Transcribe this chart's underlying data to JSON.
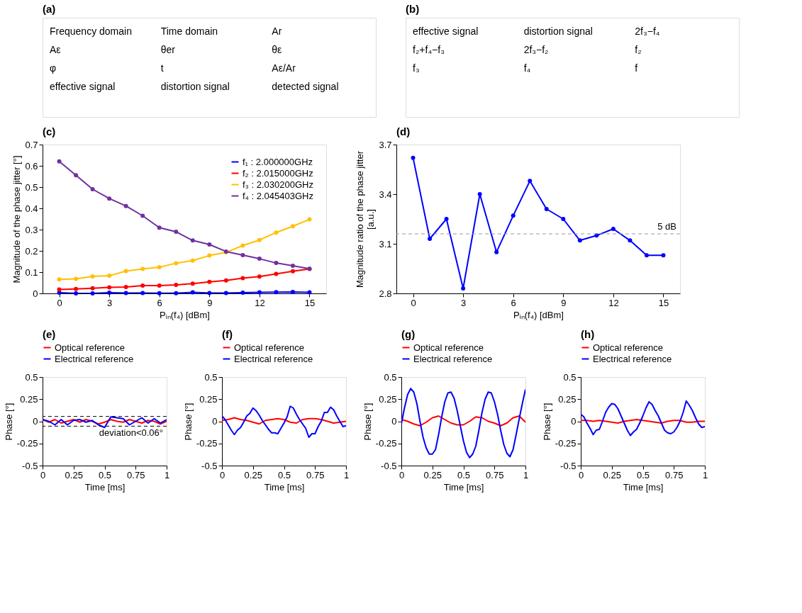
{
  "chart_data": [
    {
      "type": "other",
      "title": "(a)",
      "annotations": [
        "Frequency domain",
        "Time domain",
        "Ar",
        "Aε",
        "θer",
        "θε",
        "φ",
        "t",
        "Aε/Ar",
        "effective signal",
        "distortion signal",
        "detected signal"
      ]
    },
    {
      "type": "other",
      "title": "(b)",
      "annotations": [
        "effective signal",
        "distortion signal",
        "2f₃−f₄",
        "f₂+f₄−f₃",
        "2f₃−f₂",
        "f₂",
        "f₃",
        "f₄",
        "f"
      ]
    },
    {
      "type": "line",
      "title": "(c)",
      "xlabel": "Pᵢₙ(f₄)  [dBm]",
      "ylabel": "Magnitude of the phase jitter [°]",
      "x": [
        0,
        1,
        2,
        3,
        4,
        5,
        6,
        7,
        8,
        9,
        10,
        11,
        12,
        13,
        14,
        15
      ],
      "xlim": [
        -1,
        16
      ],
      "xticks": [
        0,
        3,
        6,
        9,
        12,
        15
      ],
      "ylim": [
        0,
        0.7
      ],
      "yticks": [
        0,
        0.1,
        0.2,
        0.3,
        0.4,
        0.5,
        0.6,
        0.7
      ],
      "marker": "circle",
      "legend": "top right",
      "series": [
        {
          "name": "f₁ : 2.000000GHz",
          "color": "#0000ff",
          "values": [
            0.003,
            0.0,
            0.0,
            0.003,
            0.002,
            0.002,
            0.001,
            0.001,
            0.005,
            0.002,
            0.002,
            0.003,
            0.005,
            0.006,
            0.007,
            0.005
          ]
        },
        {
          "name": "f₂ : 2.015000GHz",
          "color": "#ff0000",
          "values": [
            0.018,
            0.021,
            0.024,
            0.028,
            0.03,
            0.037,
            0.037,
            0.04,
            0.046,
            0.054,
            0.061,
            0.072,
            0.079,
            0.092,
            0.104,
            0.115
          ]
        },
        {
          "name": "f₃ : 2.030200GHz",
          "color": "#ffc000",
          "values": [
            0.066,
            0.068,
            0.08,
            0.083,
            0.105,
            0.115,
            0.123,
            0.142,
            0.154,
            0.178,
            0.193,
            0.225,
            0.251,
            0.286,
            0.316,
            0.348
          ]
        },
        {
          "name": "f₄ : 2.045403GHz",
          "color": "#7030a0",
          "values": [
            0.621,
            0.556,
            0.49,
            0.446,
            0.411,
            0.365,
            0.309,
            0.29,
            0.249,
            0.23,
            0.197,
            0.18,
            0.163,
            0.143,
            0.13,
            0.116
          ]
        }
      ]
    },
    {
      "type": "line",
      "title": "(d)",
      "xlabel": "Pᵢₙ(f₄)  [dBm]",
      "ylabel": [
        "Magnitude ratio of the phase jitter",
        "[a.u.]"
      ],
      "x": [
        0,
        1,
        2,
        3,
        4,
        5,
        6,
        7,
        8,
        9,
        10,
        11,
        12,
        13,
        14,
        15
      ],
      "xlim": [
        -1,
        16
      ],
      "xticks": [
        0,
        3,
        6,
        9,
        12,
        15
      ],
      "ylim": [
        2.8,
        3.7
      ],
      "yticks": [
        2.8,
        3.1,
        3.4,
        3.7
      ],
      "marker": "circle",
      "series": [
        {
          "color": "#0000ff",
          "values": [
            3.62,
            3.13,
            3.25,
            2.83,
            3.4,
            3.05,
            3.27,
            3.48,
            3.31,
            3.25,
            3.12,
            3.15,
            3.19,
            3.12,
            3.03,
            3.03
          ]
        }
      ],
      "ref_lines": [
        {
          "axis": "y",
          "value": 3.16,
          "label": "5 dB",
          "color": "#999999",
          "line_style": "dashed"
        }
      ]
    },
    {
      "type": "line",
      "title": "(e)",
      "xlabel": "Time [ms]",
      "ylabel": "Phase [°]",
      "xlim": [
        0,
        1
      ],
      "xticks": [
        0,
        0.25,
        0.5,
        0.75,
        1
      ],
      "ylim": [
        -0.5,
        0.5
      ],
      "yticks": [
        -0.5,
        -0.25,
        0,
        0.25,
        0.5
      ],
      "legend": "top",
      "series": [
        {
          "name": "Optical reference",
          "color": "#ff0000",
          "x": [
            0,
            0.05,
            0.1,
            0.15,
            0.2,
            0.25,
            0.3,
            0.35,
            0.4,
            0.45,
            0.5,
            0.55,
            0.6,
            0.65,
            0.7,
            0.75,
            0.8,
            0.85,
            0.9,
            0.95,
            1
          ],
          "values": [
            0.02,
            -0.01,
            0.02,
            -0.02,
            0.0,
            0.02,
            -0.01,
            0.02,
            0.0,
            -0.03,
            -0.01,
            0.02,
            0.0,
            -0.01,
            0.02,
            0.0,
            -0.02,
            0.01,
            0.0,
            -0.03,
            0.0
          ]
        },
        {
          "name": "Electrical reference",
          "color": "#0000ff",
          "x": [
            0,
            0.05,
            0.1,
            0.15,
            0.2,
            0.25,
            0.3,
            0.35,
            0.4,
            0.45,
            0.5,
            0.55,
            0.6,
            0.65,
            0.7,
            0.75,
            0.8,
            0.85,
            0.9,
            0.95,
            1
          ],
          "values": [
            0.02,
            0.0,
            -0.04,
            0.02,
            -0.04,
            0.01,
            0.02,
            -0.01,
            0.01,
            -0.04,
            -0.07,
            0.05,
            0.04,
            0.03,
            -0.04,
            0.0,
            0.04,
            -0.02,
            0.03,
            -0.02,
            0.02
          ]
        }
      ],
      "ref_lines": [
        {
          "axis": "y",
          "value": 0.055,
          "color": "#000000",
          "line_style": "dashed"
        },
        {
          "axis": "y",
          "value": -0.055,
          "color": "#000000",
          "line_style": "dashed"
        }
      ],
      "annotations": [
        "deviation<0.06°"
      ]
    },
    {
      "type": "line",
      "title": "(f)",
      "xlabel": "Time [ms]",
      "ylabel": "Phase [°]",
      "xlim": [
        0,
        1
      ],
      "xticks": [
        0,
        0.25,
        0.5,
        0.75,
        1
      ],
      "ylim": [
        -0.5,
        0.5
      ],
      "yticks": [
        -0.5,
        -0.25,
        0,
        0.25,
        0.5
      ],
      "legend": "top",
      "series": [
        {
          "name": "Optical reference",
          "color": "#ff0000",
          "x": [
            0,
            0.05,
            0.1,
            0.15,
            0.2,
            0.25,
            0.3,
            0.35,
            0.4,
            0.45,
            0.5,
            0.55,
            0.6,
            0.65,
            0.7,
            0.75,
            0.8,
            0.85,
            0.9,
            0.95,
            1
          ],
          "values": [
            0.01,
            0.02,
            0.04,
            0.02,
            0.01,
            -0.01,
            -0.03,
            0.01,
            0.02,
            0.03,
            0.02,
            -0.01,
            -0.02,
            0.02,
            0.03,
            0.03,
            0.02,
            0.0,
            -0.02,
            -0.01,
            0.0
          ]
        },
        {
          "name": "Electrical reference",
          "color": "#0000ff",
          "x": [
            0,
            0.025,
            0.05,
            0.075,
            0.1,
            0.125,
            0.15,
            0.175,
            0.2,
            0.225,
            0.25,
            0.275,
            0.3,
            0.325,
            0.35,
            0.375,
            0.4,
            0.425,
            0.45,
            0.475,
            0.5,
            0.525,
            0.55,
            0.575,
            0.6,
            0.625,
            0.65,
            0.675,
            0.7,
            0.725,
            0.75,
            0.775,
            0.8,
            0.825,
            0.85,
            0.875,
            0.9,
            0.925,
            0.95,
            0.975,
            1
          ],
          "values": [
            0.06,
            0.02,
            -0.04,
            -0.1,
            -0.15,
            -0.1,
            -0.07,
            -0.01,
            0.06,
            0.09,
            0.15,
            0.12,
            0.07,
            0.01,
            -0.04,
            -0.09,
            -0.13,
            -0.13,
            -0.14,
            -0.08,
            -0.02,
            0.05,
            0.17,
            0.15,
            0.08,
            0.02,
            -0.03,
            -0.08,
            -0.18,
            -0.14,
            -0.14,
            -0.06,
            0.0,
            0.1,
            0.1,
            0.16,
            0.13,
            0.06,
            0.0,
            -0.06,
            -0.05
          ]
        }
      ]
    },
    {
      "type": "line",
      "title": "(g)",
      "xlabel": "Time [ms]",
      "ylabel": "Phase [°]",
      "xlim": [
        0,
        1
      ],
      "xticks": [
        0,
        0.25,
        0.5,
        0.75,
        1
      ],
      "ylim": [
        -0.5,
        0.5
      ],
      "yticks": [
        -0.5,
        -0.25,
        0,
        0.25,
        0.5
      ],
      "legend": "top",
      "series": [
        {
          "name": "Optical reference",
          "color": "#ff0000",
          "x": [
            0,
            0.05,
            0.1,
            0.15,
            0.2,
            0.25,
            0.3,
            0.35,
            0.4,
            0.45,
            0.5,
            0.55,
            0.6,
            0.65,
            0.7,
            0.75,
            0.8,
            0.85,
            0.9,
            0.95,
            1
          ],
          "values": [
            0.02,
            0.0,
            -0.03,
            -0.05,
            -0.01,
            0.04,
            0.06,
            0.02,
            -0.02,
            -0.04,
            -0.04,
            0.0,
            0.05,
            0.04,
            0.0,
            -0.02,
            -0.05,
            -0.02,
            0.04,
            0.06,
            -0.01
          ]
        },
        {
          "name": "Electrical reference",
          "color": "#0000ff",
          "x": [
            0,
            0.025,
            0.05,
            0.075,
            0.1,
            0.125,
            0.15,
            0.175,
            0.2,
            0.225,
            0.25,
            0.275,
            0.3,
            0.325,
            0.35,
            0.375,
            0.4,
            0.425,
            0.45,
            0.475,
            0.5,
            0.525,
            0.55,
            0.575,
            0.6,
            0.625,
            0.65,
            0.675,
            0.7,
            0.725,
            0.75,
            0.775,
            0.8,
            0.825,
            0.85,
            0.875,
            0.9,
            0.925,
            0.95,
            0.975,
            1
          ],
          "values": [
            -0.03,
            0.15,
            0.3,
            0.37,
            0.33,
            0.2,
            0.0,
            -0.18,
            -0.3,
            -0.37,
            -0.37,
            -0.32,
            -0.15,
            0.05,
            0.22,
            0.32,
            0.33,
            0.26,
            0.12,
            -0.05,
            -0.22,
            -0.35,
            -0.41,
            -0.37,
            -0.28,
            -0.1,
            0.1,
            0.25,
            0.33,
            0.32,
            0.22,
            0.08,
            -0.1,
            -0.26,
            -0.36,
            -0.4,
            -0.32,
            -0.15,
            0.03,
            0.2,
            0.36
          ]
        }
      ]
    },
    {
      "type": "line",
      "title": "(h)",
      "xlabel": "Time [ms]",
      "ylabel": "Phase [°]",
      "xlim": [
        0,
        1
      ],
      "xticks": [
        0,
        0.25,
        0.5,
        0.75,
        1
      ],
      "ylim": [
        -0.5,
        0.5
      ],
      "yticks": [
        -0.5,
        -0.25,
        0,
        0.25,
        0.5
      ],
      "legend": "top",
      "series": [
        {
          "name": "Optical reference",
          "color": "#ff0000",
          "x": [
            0,
            0.05,
            0.1,
            0.15,
            0.2,
            0.25,
            0.3,
            0.35,
            0.4,
            0.45,
            0.5,
            0.55,
            0.6,
            0.65,
            0.7,
            0.75,
            0.8,
            0.85,
            0.9,
            0.95,
            1
          ],
          "values": [
            0.01,
            0.01,
            0.0,
            0.01,
            0.0,
            -0.01,
            -0.02,
            0.0,
            0.01,
            0.02,
            0.01,
            0.0,
            -0.01,
            -0.02,
            0.0,
            0.01,
            0.01,
            -0.01,
            -0.01,
            0.0,
            0.0
          ]
        },
        {
          "name": "Electrical reference",
          "color": "#0000ff",
          "x": [
            0,
            0.025,
            0.05,
            0.075,
            0.1,
            0.125,
            0.15,
            0.175,
            0.2,
            0.225,
            0.25,
            0.275,
            0.3,
            0.325,
            0.35,
            0.375,
            0.4,
            0.425,
            0.45,
            0.475,
            0.5,
            0.525,
            0.55,
            0.575,
            0.6,
            0.625,
            0.65,
            0.675,
            0.7,
            0.725,
            0.75,
            0.775,
            0.8,
            0.825,
            0.85,
            0.875,
            0.9,
            0.925,
            0.95,
            0.975,
            1
          ],
          "values": [
            0.08,
            0.05,
            -0.02,
            -0.08,
            -0.15,
            -0.1,
            -0.09,
            0.0,
            0.1,
            0.16,
            0.2,
            0.19,
            0.14,
            0.06,
            -0.02,
            -0.1,
            -0.16,
            -0.12,
            -0.09,
            -0.02,
            0.06,
            0.15,
            0.22,
            0.19,
            0.12,
            0.06,
            -0.02,
            -0.1,
            -0.13,
            -0.14,
            -0.12,
            -0.07,
            0.0,
            0.1,
            0.23,
            0.18,
            0.12,
            0.04,
            -0.03,
            -0.07,
            -0.06
          ]
        }
      ]
    }
  ]
}
